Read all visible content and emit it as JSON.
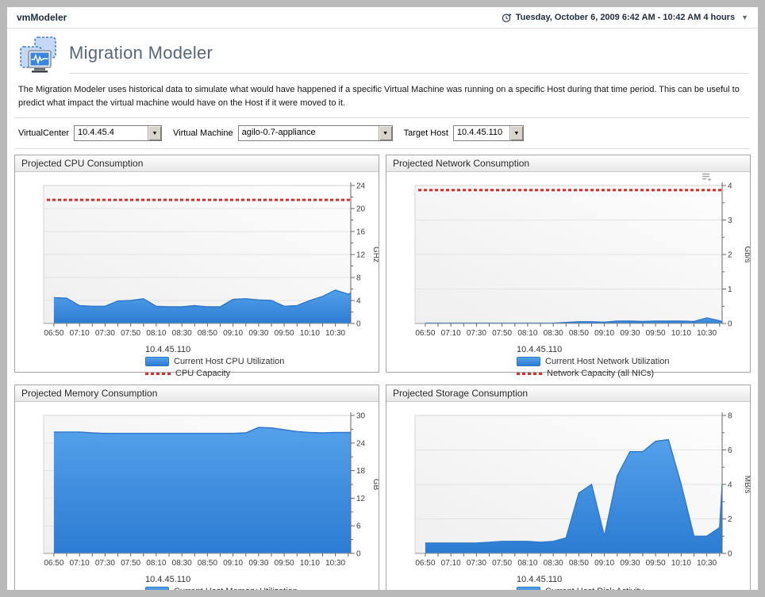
{
  "window": {
    "app_title": "vmModeler",
    "time_range": "Tuesday, October 6, 2009 6:42 AM - 10:42 AM 4 hours",
    "time_caret": "▼"
  },
  "page": {
    "title": "Migration Modeler",
    "description": "The Migration Modeler uses historical data to simulate what would have happened if a specific Virtual Machine was running on a specific Host during that time period. This can be useful to predict what impact the virtual machine would have on the Host if it were moved to it."
  },
  "filters": {
    "virtualcenter_label": "VirtualCenter",
    "virtualcenter_value": "10.4.45.4",
    "vm_label": "Virtual Machine",
    "vm_value": "agilo-0.7-appliance",
    "target_host_label": "Target Host",
    "target_host_value": "10.4.45.110",
    "dropdown_arrow": "▼"
  },
  "colors": {
    "area_fill_top": "#54a0ea",
    "area_fill_bottom": "#2b7cd3",
    "area_stroke": "#2f77c8",
    "capacity_red": "#e02a2a",
    "plot_bg_light": "#fdfdfd",
    "plot_bg_dark": "#efefef",
    "grid": "#e3e3e3",
    "axis": "#666666",
    "tick_text": "#3c3c3c"
  },
  "chart_data": [
    {
      "id": "cpu",
      "type": "area",
      "panel_title": "Projected CPU Consumption",
      "unit": "GHz",
      "y_axis": {
        "min": 0,
        "max": 24,
        "major_step": 4,
        "minor_step": 2,
        "tick_labels": [
          0,
          4,
          8,
          12,
          16,
          20,
          24
        ]
      },
      "x_axis": {
        "start": "06:42",
        "end": "10:42",
        "tick_labels": [
          "06:50",
          "07:10",
          "07:30",
          "07:50",
          "08:10",
          "08:30",
          "08:50",
          "09:10",
          "09:30",
          "09:50",
          "10:10",
          "10:30"
        ]
      },
      "x_times": [
        "06:50",
        "07:00",
        "07:10",
        "07:20",
        "07:30",
        "07:40",
        "07:50",
        "08:00",
        "08:10",
        "08:20",
        "08:30",
        "08:40",
        "08:50",
        "09:00",
        "09:10",
        "09:20",
        "09:30",
        "09:40",
        "09:50",
        "10:00",
        "10:10",
        "10:20",
        "10:30",
        "10:40",
        "10:42"
      ],
      "values": [
        4.5,
        4.4,
        3.1,
        3.0,
        3.0,
        3.9,
        4.0,
        4.3,
        3.0,
        2.9,
        2.9,
        3.1,
        2.9,
        2.9,
        4.2,
        4.3,
        4.1,
        4.0,
        3.0,
        3.1,
        4.0,
        4.7,
        5.8,
        5.1,
        5.3
      ],
      "capacity": 21.5,
      "capacity_label": "CPU Capacity",
      "legend_host": "10.4.45.110",
      "series_label": "Current Host CPU Utilization",
      "has_menu_icon": false
    },
    {
      "id": "network",
      "type": "area",
      "panel_title": "Projected Network Consumption",
      "unit": "Gb/s",
      "y_axis": {
        "min": 0,
        "max": 4,
        "major_step": 1,
        "minor_step": 0.5,
        "tick_labels": [
          0,
          1,
          2,
          3,
          4
        ]
      },
      "x_axis": {
        "start": "06:42",
        "end": "10:42",
        "tick_labels": [
          "06:50",
          "07:10",
          "07:30",
          "07:50",
          "08:10",
          "08:30",
          "08:50",
          "09:10",
          "09:30",
          "09:50",
          "10:10",
          "10:30"
        ]
      },
      "x_times": [
        "06:50",
        "07:00",
        "07:10",
        "07:20",
        "07:30",
        "07:40",
        "07:50",
        "08:00",
        "08:10",
        "08:20",
        "08:30",
        "08:40",
        "08:50",
        "09:00",
        "09:10",
        "09:20",
        "09:30",
        "09:40",
        "09:50",
        "10:00",
        "10:10",
        "10:20",
        "10:30",
        "10:40",
        "10:42"
      ],
      "values": [
        0.01,
        0.01,
        0.01,
        0.01,
        0.01,
        0.01,
        0.01,
        0.01,
        0.01,
        0.01,
        0.01,
        0.03,
        0.05,
        0.05,
        0.04,
        0.07,
        0.07,
        0.06,
        0.07,
        0.07,
        0.07,
        0.06,
        0.16,
        0.08,
        0.05
      ],
      "capacity": 3.87,
      "capacity_label": "Network Capacity (all NICs)",
      "legend_host": "10.4.45.110",
      "series_label": "Current Host Network Utilization",
      "has_menu_icon": true
    },
    {
      "id": "memory",
      "type": "area",
      "panel_title": "Projected Memory Consumption",
      "unit": "GB",
      "y_axis": {
        "min": 0,
        "max": 30,
        "major_step": 6,
        "minor_step": 3,
        "tick_labels": [
          0,
          6,
          12,
          18,
          24,
          30
        ]
      },
      "x_axis": {
        "start": "06:42",
        "end": "10:42",
        "tick_labels": [
          "06:50",
          "07:10",
          "07:30",
          "07:50",
          "08:10",
          "08:30",
          "08:50",
          "09:10",
          "09:30",
          "09:50",
          "10:10",
          "10:30"
        ]
      },
      "x_times": [
        "06:50",
        "07:00",
        "07:10",
        "07:20",
        "07:30",
        "07:40",
        "07:50",
        "08:00",
        "08:10",
        "08:20",
        "08:30",
        "08:40",
        "08:50",
        "09:00",
        "09:10",
        "09:20",
        "09:30",
        "09:40",
        "09:50",
        "10:00",
        "10:10",
        "10:20",
        "10:30",
        "10:40",
        "10:42"
      ],
      "values": [
        26.4,
        26.4,
        26.4,
        26.2,
        26.1,
        26.1,
        26.1,
        26.1,
        26.1,
        26.1,
        26.1,
        26.1,
        26.1,
        26.1,
        26.1,
        26.2,
        27.4,
        27.3,
        26.9,
        26.5,
        26.3,
        26.2,
        26.3,
        26.3,
        26.3
      ],
      "capacity": null,
      "capacity_label": null,
      "legend_host": "10.4.45.110",
      "series_label": "Current Host Memory Utilization",
      "has_menu_icon": false
    },
    {
      "id": "storage",
      "type": "area",
      "panel_title": "Projected Storage Consumption",
      "unit": "MB/s",
      "y_axis": {
        "min": 0,
        "max": 8,
        "major_step": 2,
        "minor_step": 1,
        "tick_labels": [
          0,
          2,
          4,
          6,
          8
        ]
      },
      "x_axis": {
        "start": "06:42",
        "end": "10:42",
        "tick_labels": [
          "06:50",
          "07:10",
          "07:30",
          "07:50",
          "08:10",
          "08:30",
          "08:50",
          "09:10",
          "09:30",
          "09:50",
          "10:10",
          "10:30"
        ]
      },
      "x_times": [
        "06:50",
        "07:00",
        "07:10",
        "07:20",
        "07:30",
        "07:40",
        "07:50",
        "08:00",
        "08:10",
        "08:20",
        "08:30",
        "08:40",
        "08:50",
        "09:00",
        "09:10",
        "09:20",
        "09:30",
        "09:40",
        "09:50",
        "10:00",
        "10:10",
        "10:20",
        "10:30",
        "10:40",
        "10:42"
      ],
      "values": [
        0.6,
        0.6,
        0.6,
        0.6,
        0.6,
        0.65,
        0.7,
        0.7,
        0.7,
        0.65,
        0.7,
        0.9,
        3.5,
        4.0,
        1.0,
        4.5,
        5.9,
        5.9,
        6.5,
        6.6,
        4.0,
        1.0,
        1.0,
        1.5,
        4.0
      ],
      "capacity": null,
      "capacity_label": null,
      "legend_host": "10.4.45.110",
      "series_label": "Current Host Disk Activity",
      "has_menu_icon": false
    }
  ]
}
